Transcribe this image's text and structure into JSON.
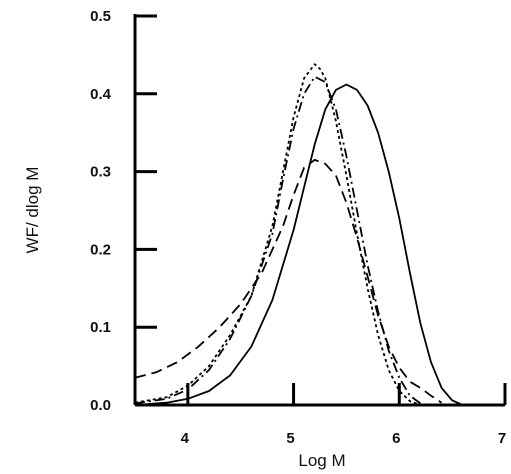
{
  "chart_data": {
    "type": "line",
    "title": "",
    "xlabel": "Log M",
    "ylabel": "WF/ dlog M",
    "xlim": [
      3.5,
      7
    ],
    "ylim": [
      0,
      0.5
    ],
    "xticks": [
      4,
      5,
      6,
      7
    ],
    "xtick_labels": [
      "4",
      "5",
      "6",
      "7"
    ],
    "yticks": [
      0,
      0.1,
      0.2,
      0.3,
      0.4,
      0.5
    ],
    "ytick_labels": [
      "0.0",
      "0.1",
      "0.2",
      "0.3",
      "0.4",
      "0.5"
    ],
    "grid": false,
    "legend": "none",
    "series": [
      {
        "style": "solid",
        "x": [
          3.5,
          3.8,
          4.0,
          4.2,
          4.4,
          4.6,
          4.8,
          5.0,
          5.1,
          5.2,
          5.3,
          5.4,
          5.5,
          5.6,
          5.7,
          5.8,
          5.9,
          6.0,
          6.1,
          6.2,
          6.3,
          6.4,
          6.5,
          6.6,
          6.8,
          7.0
        ],
        "y": [
          0.0,
          0.003,
          0.008,
          0.018,
          0.038,
          0.075,
          0.135,
          0.225,
          0.28,
          0.335,
          0.38,
          0.405,
          0.412,
          0.405,
          0.385,
          0.35,
          0.3,
          0.24,
          0.17,
          0.105,
          0.055,
          0.022,
          0.006,
          0.0,
          0.0,
          0.0
        ]
      },
      {
        "style": "dashed",
        "x": [
          3.5,
          3.7,
          3.9,
          4.1,
          4.3,
          4.5,
          4.7,
          4.9,
          5.0,
          5.1,
          5.2,
          5.3,
          5.4,
          5.5,
          5.6,
          5.7,
          5.8,
          5.9,
          6.0,
          6.1,
          6.2,
          6.3,
          6.4
        ],
        "y": [
          0.035,
          0.042,
          0.055,
          0.075,
          0.1,
          0.13,
          0.17,
          0.23,
          0.27,
          0.305,
          0.315,
          0.31,
          0.295,
          0.26,
          0.215,
          0.165,
          0.115,
          0.075,
          0.048,
          0.03,
          0.022,
          0.012,
          0.003
        ]
      },
      {
        "style": "dotted",
        "x": [
          3.5,
          3.8,
          4.0,
          4.2,
          4.4,
          4.6,
          4.8,
          4.9,
          5.0,
          5.1,
          5.2,
          5.25,
          5.3,
          5.4,
          5.5,
          5.6,
          5.7,
          5.8,
          5.9,
          6.0,
          6.1,
          6.2
        ],
        "y": [
          0.003,
          0.01,
          0.025,
          0.05,
          0.09,
          0.14,
          0.23,
          0.3,
          0.37,
          0.42,
          0.438,
          0.432,
          0.42,
          0.365,
          0.295,
          0.22,
          0.15,
          0.09,
          0.045,
          0.018,
          0.005,
          0.0
        ]
      },
      {
        "style": "dash-dot",
        "x": [
          3.5,
          3.8,
          4.0,
          4.2,
          4.4,
          4.6,
          4.8,
          4.9,
          5.0,
          5.1,
          5.2,
          5.3,
          5.4,
          5.5,
          5.6,
          5.7,
          5.8,
          5.9,
          6.0,
          6.1,
          6.2
        ],
        "y": [
          0.002,
          0.008,
          0.02,
          0.045,
          0.085,
          0.14,
          0.22,
          0.29,
          0.355,
          0.4,
          0.422,
          0.415,
          0.38,
          0.32,
          0.25,
          0.18,
          0.12,
          0.07,
          0.035,
          0.012,
          0.002
        ]
      }
    ]
  }
}
